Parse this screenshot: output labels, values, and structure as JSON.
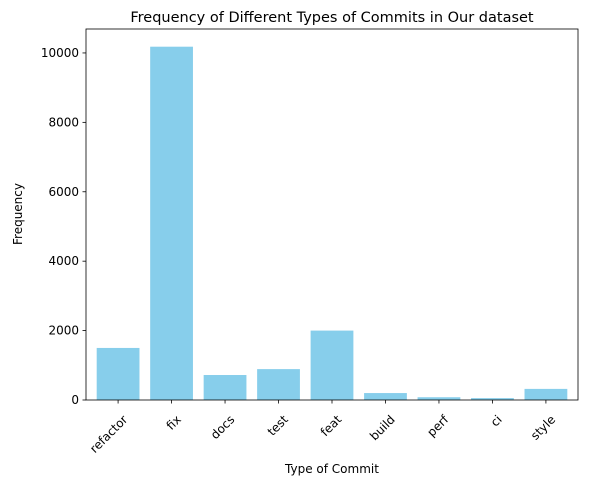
{
  "chart_data": {
    "type": "bar",
    "title": "Frequency of Different Types of Commits in Our dataset",
    "xlabel": "Type of Commit",
    "ylabel": "Frequency",
    "categories": [
      "refactor",
      "fix",
      "docs",
      "test",
      "feat",
      "build",
      "perf",
      "ci",
      "style"
    ],
    "values": [
      1500,
      10180,
      720,
      890,
      2000,
      200,
      80,
      55,
      320
    ],
    "ylim": [
      0,
      10690
    ],
    "yticks": [
      0,
      2000,
      4000,
      6000,
      8000,
      10000
    ],
    "bar_color": "#87CEEB",
    "grid": false,
    "legend": "none"
  }
}
